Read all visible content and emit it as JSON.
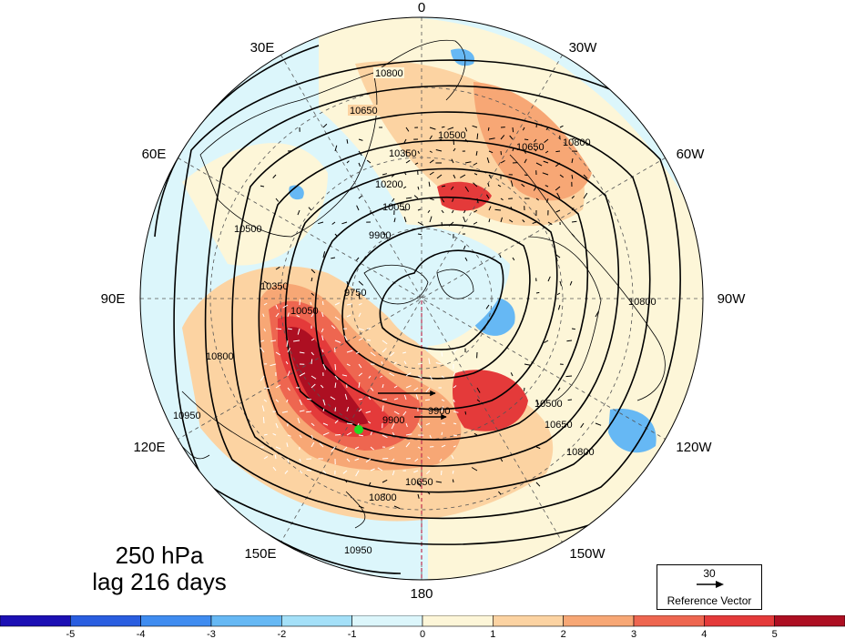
{
  "title": {
    "level": "250 hPa",
    "lag": "lag 216 days"
  },
  "longitude_labels": [
    "0",
    "30W",
    "60W",
    "90W",
    "120W",
    "150W",
    "180",
    "150E",
    "120E",
    "90E",
    "60E",
    "30E"
  ],
  "contour_labels": [
    "10800",
    "10650",
    "10500",
    "10350",
    "10200",
    "10050",
    "9900",
    "9750",
    "10950"
  ],
  "reference_vector": {
    "value": "30",
    "label": "Reference Vector"
  },
  "colorbar": {
    "ticks": [
      "-5",
      "-4",
      "-3",
      "-2",
      "-1",
      "0",
      "1",
      "2",
      "3",
      "4",
      "5"
    ],
    "colors": [
      "#1c10b4",
      "#2a5ee0",
      "#3f8cf0",
      "#66b8f4",
      "#a4e0f8",
      "#dcf6fb",
      "#fdf6d8",
      "#fcd3a2",
      "#f7a775",
      "#ee6650",
      "#e43a3a",
      "#ad0f22"
    ]
  },
  "marker_color": "#22dd22",
  "center_dashed_meridian": "180"
}
